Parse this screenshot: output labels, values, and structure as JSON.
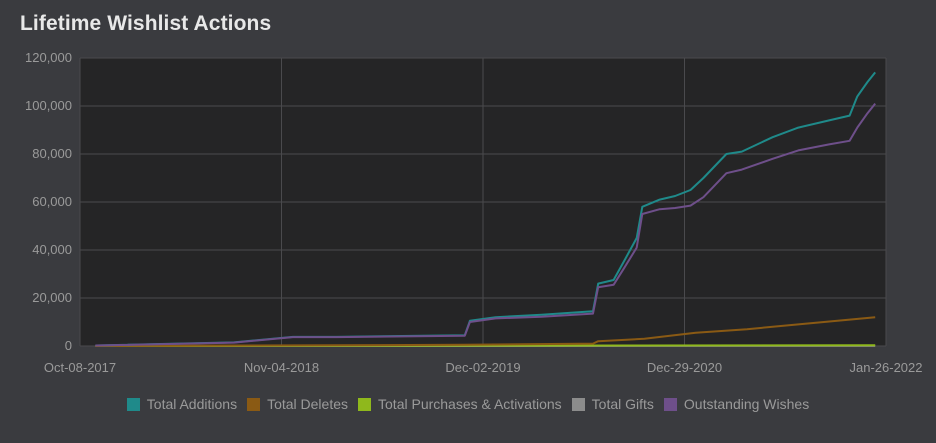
{
  "page": {
    "title": "Lifetime Wishlist Actions"
  },
  "chart_data": {
    "type": "line",
    "title": "Lifetime Wishlist Actions",
    "xlabel": "",
    "ylabel": "",
    "x_tick_labels": [
      "Oct-08-2017",
      "Nov-04-2018",
      "Dec-02-2019",
      "Dec-29-2020",
      "Jan-26-2022"
    ],
    "y_tick_labels": [
      "0",
      "20,000",
      "40,000",
      "60,000",
      "80,000",
      "100,000",
      "120,000"
    ],
    "y_ticks": [
      0,
      20000,
      40000,
      60000,
      80000,
      100000,
      120000
    ],
    "ylim": [
      0,
      120000
    ],
    "xlim": [
      0,
      1571
    ],
    "x_units": "days since Oct-08-2017",
    "grid": true,
    "legend_position": "bottom",
    "series": [
      {
        "name": "Total Additions",
        "color": "#1f8a8a",
        "x": [
          30,
          300,
          415,
          500,
          750,
          760,
          810,
          900,
          1000,
          1010,
          1040,
          1062,
          1085,
          1096,
          1130,
          1160,
          1190,
          1215,
          1260,
          1290,
          1350,
          1400,
          1460,
          1500,
          1515,
          1535,
          1550
        ],
        "y": [
          200,
          1500,
          3800,
          3800,
          4500,
          10500,
          12000,
          13000,
          14500,
          26000,
          27500,
          36000,
          45000,
          58000,
          61000,
          62500,
          65000,
          70000,
          80000,
          81000,
          87000,
          91000,
          94000,
          96000,
          104000,
          110000,
          114000
        ]
      },
      {
        "name": "Total Deletes",
        "color": "#8a5a14",
        "x": [
          30,
          750,
          1000,
          1010,
          1100,
          1200,
          1300,
          1400,
          1500,
          1550
        ],
        "y": [
          0,
          500,
          1000,
          2000,
          3000,
          5500,
          7000,
          9000,
          11000,
          12000
        ]
      },
      {
        "name": "Total Purchases & Activations",
        "color": "#8fb81c",
        "x": [
          30,
          1550
        ],
        "y": [
          0,
          300
        ]
      },
      {
        "name": "Total Gifts",
        "color": "#8c8c8c",
        "x": [
          30,
          1550
        ],
        "y": [
          0,
          50
        ]
      },
      {
        "name": "Outstanding Wishes",
        "color": "#6e4f8a",
        "x": [
          30,
          300,
          415,
          500,
          750,
          760,
          810,
          900,
          1000,
          1010,
          1040,
          1062,
          1085,
          1096,
          1130,
          1160,
          1190,
          1215,
          1260,
          1290,
          1350,
          1400,
          1460,
          1500,
          1515,
          1535,
          1550
        ],
        "y": [
          200,
          1400,
          3700,
          3700,
          4300,
          10000,
          11500,
          12200,
          13500,
          24500,
          25500,
          33000,
          41000,
          55000,
          57000,
          57500,
          58500,
          62000,
          72000,
          73500,
          78000,
          81500,
          84000,
          85500,
          91000,
          97000,
          101000
        ]
      }
    ]
  }
}
